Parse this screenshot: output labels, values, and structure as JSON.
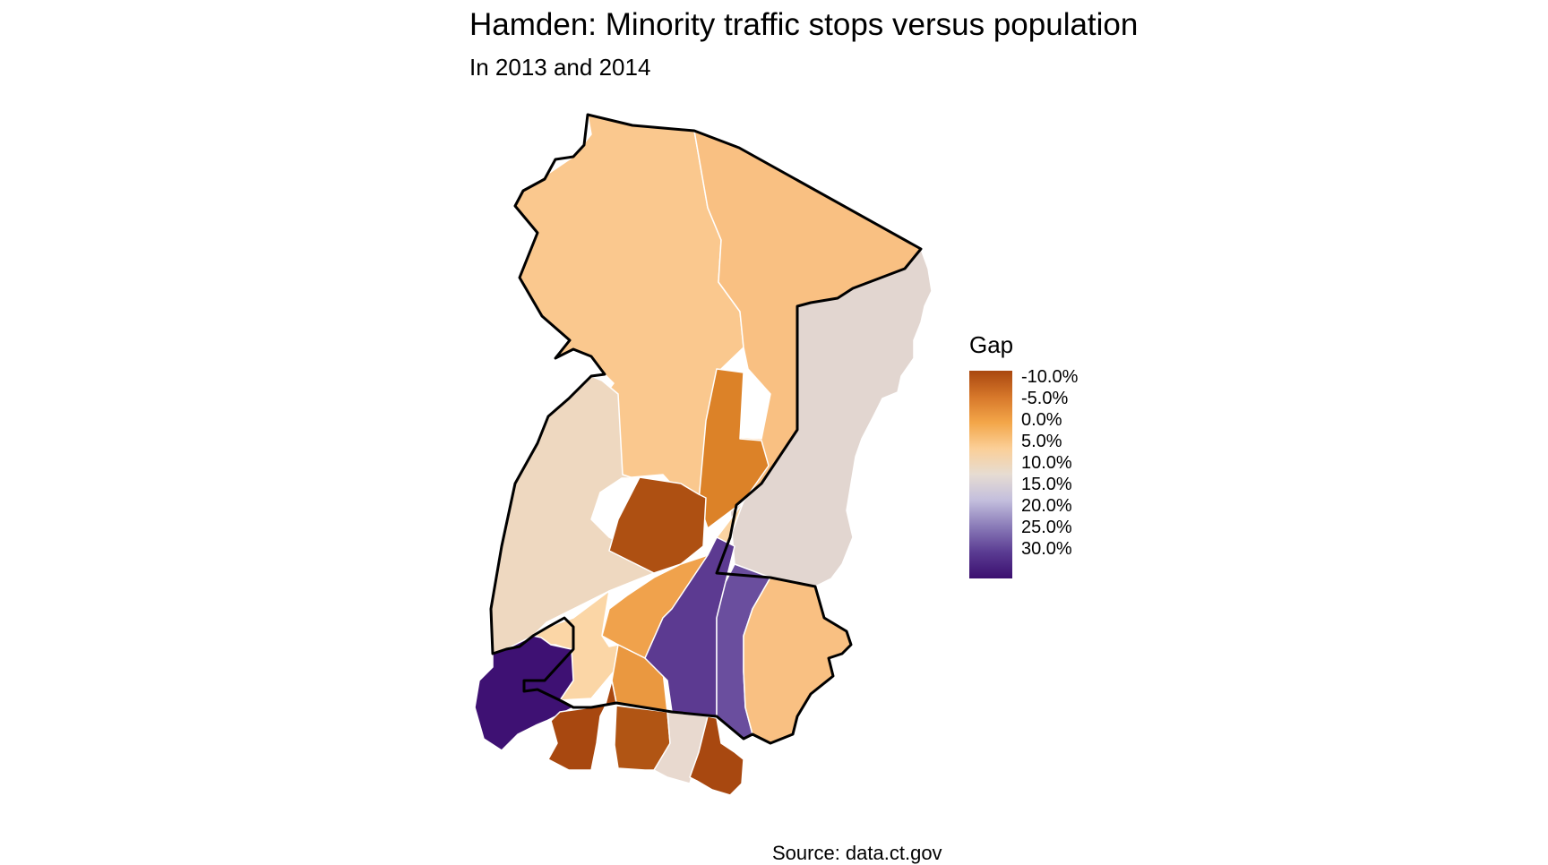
{
  "title": "Hamden: Minority traffic stops versus population",
  "subtitle": "In 2013 and 2014",
  "caption": "Source: data.ct.gov",
  "legend": {
    "title": "Gap",
    "labels": [
      "-10.0%",
      "-5.0%",
      "0.0%",
      "5.0%",
      "10.0%",
      "15.0%",
      "20.0%",
      "25.0%",
      "30.0%"
    ],
    "gradient_colors": [
      "#a9470f",
      "#d6772a",
      "#f3a649",
      "#fbcf98",
      "#e6dcd2",
      "#c3bedd",
      "#8a7bb8",
      "#5a3b92",
      "#3b0f6f"
    ]
  },
  "regions": [
    {
      "id": "north-west",
      "color": "#fac88e"
    },
    {
      "id": "north-east",
      "color": "#f9c082"
    },
    {
      "id": "east-strip",
      "color": "#e2d6d0"
    },
    {
      "id": "west-mid",
      "color": "#eed8c0"
    },
    {
      "id": "center-orange",
      "color": "#dc8228"
    },
    {
      "id": "center-brown",
      "color": "#ae5012"
    },
    {
      "id": "center-light",
      "color": "#fbd4a2"
    },
    {
      "id": "south-orange-a",
      "color": "#f0a24c"
    },
    {
      "id": "south-orange-b",
      "color": "#ea9840"
    },
    {
      "id": "south-light-west",
      "color": "#fbd6a6"
    },
    {
      "id": "south-purple-a",
      "color": "#5c3a91"
    },
    {
      "id": "south-purple-b",
      "color": "#6a4e9e"
    },
    {
      "id": "south-east-peach",
      "color": "#f9c082"
    },
    {
      "id": "south-west-dark",
      "color": "#3e1173"
    },
    {
      "id": "bottom-brown-a",
      "color": "#a84810"
    },
    {
      "id": "bottom-brown-b",
      "color": "#b15514"
    },
    {
      "id": "bottom-light",
      "color": "#e8d9cf"
    },
    {
      "id": "bottom-brown-c",
      "color": "#a84810"
    }
  ]
}
